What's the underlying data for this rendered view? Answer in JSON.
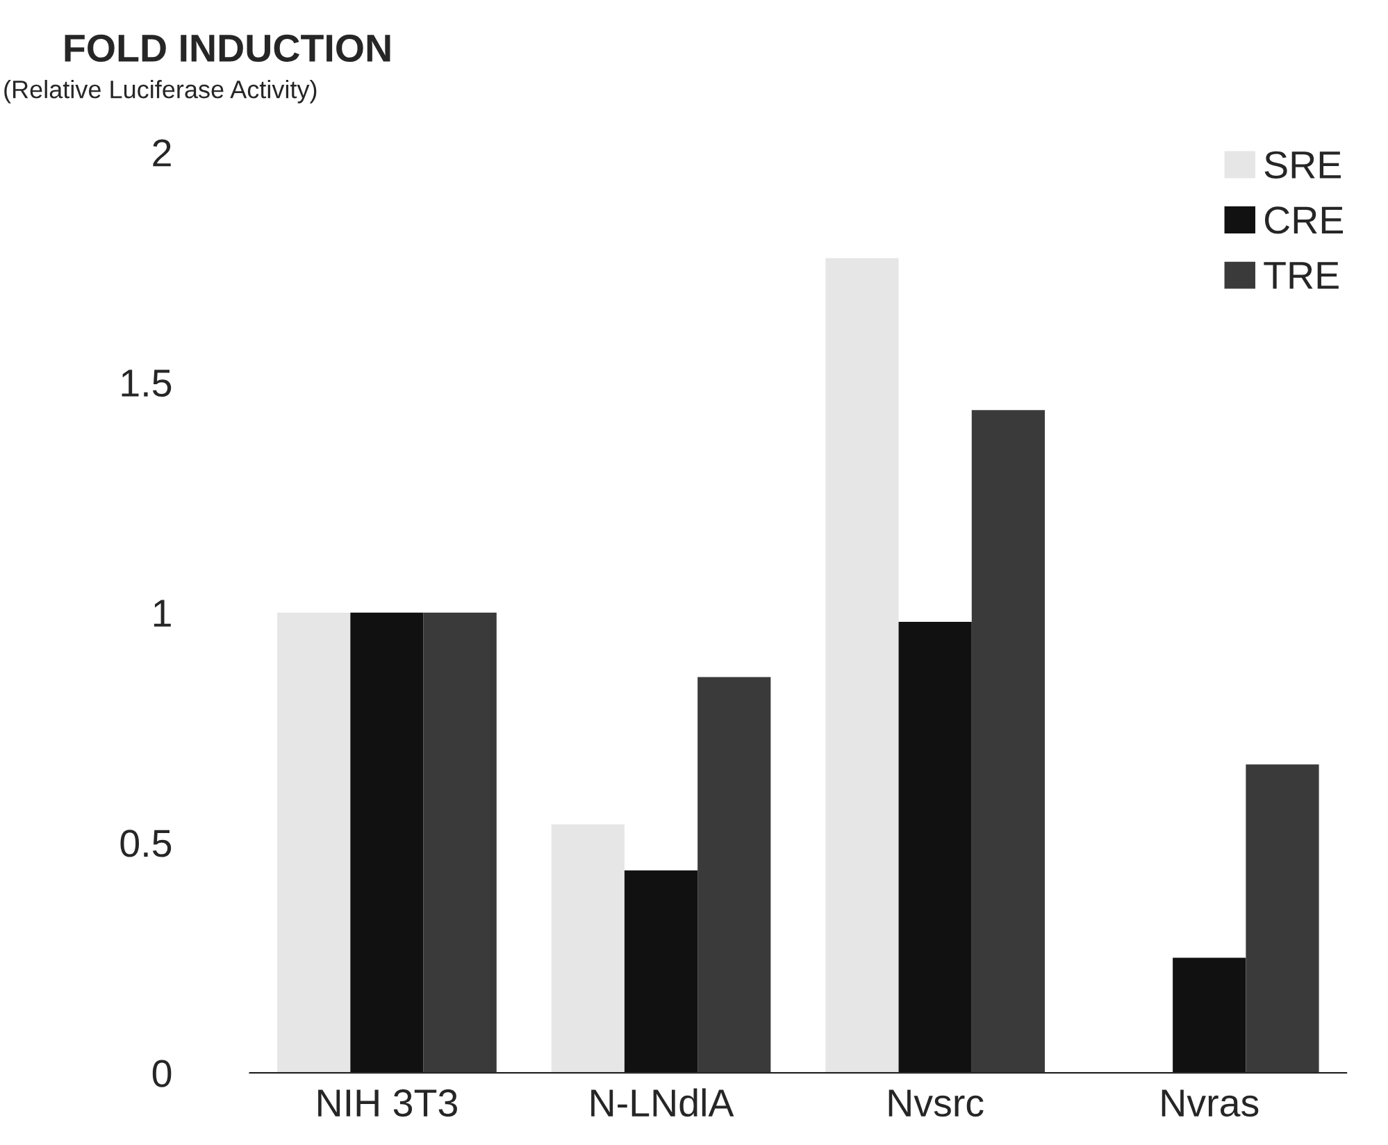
{
  "chart_data": {
    "type": "bar",
    "title": "FOLD INDUCTION",
    "subtitle": "(Relative Luciferase Activity)",
    "categories": [
      "NIH 3T3",
      "N-LNdlA",
      "Nvsrc",
      "Nvras"
    ],
    "series": [
      {
        "name": "SRE",
        "color": "#e6e6e6",
        "values": [
          1.0,
          0.54,
          1.77,
          0
        ]
      },
      {
        "name": "CRE",
        "color": "#111111",
        "values": [
          1.0,
          0.44,
          0.98,
          0.25
        ]
      },
      {
        "name": "TRE",
        "color": "#3a3a3a",
        "values": [
          1.0,
          0.86,
          1.44,
          0.67
        ]
      }
    ],
    "ylim": [
      0,
      2
    ],
    "yticks": [
      0,
      0.5,
      1,
      1.5,
      2
    ],
    "grid": false,
    "legend": "top right"
  }
}
